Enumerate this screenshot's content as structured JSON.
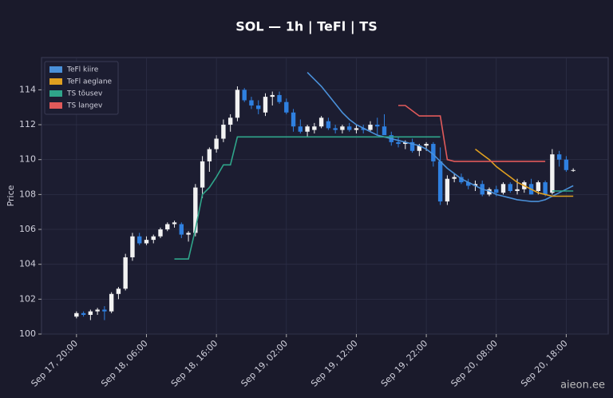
{
  "chart_data": {
    "type": "candlestick",
    "title": "SOL — 1h  |  TeFl  |  TS",
    "y_label": "Price",
    "watermark": "aieon.ee",
    "x": [
      "Sep 17, 20:00",
      "Sep 17, 21:00",
      "Sep 17, 22:00",
      "Sep 17, 23:00",
      "Sep 18, 00:00",
      "Sep 18, 01:00",
      "Sep 18, 02:00",
      "Sep 18, 03:00",
      "Sep 18, 04:00",
      "Sep 18, 05:00",
      "Sep 18, 06:00",
      "Sep 18, 07:00",
      "Sep 18, 08:00",
      "Sep 18, 09:00",
      "Sep 18, 10:00",
      "Sep 18, 11:00",
      "Sep 18, 12:00",
      "Sep 18, 13:00",
      "Sep 18, 14:00",
      "Sep 18, 15:00",
      "Sep 18, 16:00",
      "Sep 18, 17:00",
      "Sep 18, 18:00",
      "Sep 18, 19:00",
      "Sep 18, 20:00",
      "Sep 18, 21:00",
      "Sep 18, 22:00",
      "Sep 18, 23:00",
      "Sep 19, 00:00",
      "Sep 19, 01:00",
      "Sep 19, 02:00",
      "Sep 19, 03:00",
      "Sep 19, 04:00",
      "Sep 19, 05:00",
      "Sep 19, 06:00",
      "Sep 19, 07:00",
      "Sep 19, 08:00",
      "Sep 19, 09:00",
      "Sep 19, 10:00",
      "Sep 19, 11:00",
      "Sep 19, 12:00",
      "Sep 19, 13:00",
      "Sep 19, 14:00",
      "Sep 19, 15:00",
      "Sep 19, 16:00",
      "Sep 19, 17:00",
      "Sep 19, 18:00",
      "Sep 19, 19:00",
      "Sep 19, 20:00",
      "Sep 19, 21:00",
      "Sep 19, 22:00",
      "Sep 19, 23:00",
      "Sep 20, 00:00",
      "Sep 20, 01:00",
      "Sep 20, 02:00",
      "Sep 20, 03:00",
      "Sep 20, 04:00",
      "Sep 20, 05:00",
      "Sep 20, 06:00",
      "Sep 20, 07:00",
      "Sep 20, 08:00",
      "Sep 20, 09:00",
      "Sep 20, 10:00",
      "Sep 20, 11:00",
      "Sep 20, 12:00",
      "Sep 20, 13:00",
      "Sep 20, 14:00",
      "Sep 20, 15:00",
      "Sep 20, 16:00",
      "Sep 20, 17:00",
      "Sep 20, 18:00",
      "Sep 20, 19:00"
    ],
    "open": [
      101.0,
      101.2,
      101.1,
      101.3,
      101.4,
      101.3,
      102.3,
      102.6,
      104.4,
      105.6,
      105.2,
      105.4,
      105.6,
      106.0,
      106.3,
      106.3,
      105.7,
      105.8,
      108.4,
      109.9,
      110.6,
      111.2,
      112.0,
      112.4,
      114.0,
      113.4,
      113.1,
      112.7,
      113.6,
      113.7,
      113.3,
      112.7,
      111.9,
      111.6,
      111.7,
      111.9,
      112.2,
      111.8,
      111.7,
      111.9,
      111.7,
      111.8,
      111.7,
      112.0,
      111.9,
      111.4,
      111.0,
      110.9,
      111.0,
      110.5,
      110.8,
      110.9,
      109.9,
      107.6,
      108.9,
      109.0,
      108.7,
      108.5,
      108.6,
      108.0,
      108.3,
      108.1,
      108.6,
      108.2,
      108.3,
      108.6,
      108.2,
      108.7,
      108.1,
      110.3,
      110.0,
      109.4
    ],
    "high": [
      101.3,
      101.3,
      101.4,
      101.5,
      101.6,
      102.4,
      102.7,
      104.6,
      105.8,
      105.8,
      105.6,
      105.7,
      106.1,
      106.4,
      106.5,
      106.4,
      105.9,
      108.6,
      110.2,
      110.7,
      111.4,
      112.3,
      112.6,
      114.2,
      114.1,
      113.6,
      113.4,
      113.8,
      113.9,
      113.9,
      113.5,
      112.9,
      112.3,
      112.0,
      112.1,
      112.5,
      112.4,
      112.0,
      112.0,
      112.1,
      112.0,
      112.0,
      112.2,
      112.4,
      112.6,
      111.6,
      111.3,
      111.1,
      111.2,
      110.9,
      111.0,
      111.0,
      110.7,
      109.1,
      109.2,
      109.2,
      108.9,
      108.8,
      108.8,
      108.4,
      108.5,
      108.7,
      108.7,
      108.9,
      108.8,
      108.9,
      108.8,
      108.8,
      110.6,
      110.5,
      110.2,
      109.5
    ],
    "low": [
      100.9,
      101.0,
      100.8,
      101.1,
      100.8,
      101.2,
      102.0,
      102.5,
      104.2,
      105.1,
      105.1,
      105.2,
      105.5,
      105.9,
      106.1,
      105.5,
      105.3,
      105.6,
      107.8,
      109.3,
      110.4,
      111.0,
      111.6,
      112.2,
      113.3,
      112.9,
      112.6,
      112.5,
      113.1,
      113.2,
      112.6,
      111.6,
      111.5,
      111.3,
      111.5,
      111.8,
      111.7,
      111.5,
      111.5,
      111.6,
      111.5,
      111.5,
      111.6,
      111.4,
      111.5,
      110.8,
      110.7,
      110.6,
      110.4,
      110.2,
      110.5,
      109.6,
      107.4,
      107.4,
      108.7,
      108.6,
      108.3,
      108.2,
      107.9,
      107.9,
      107.9,
      108.0,
      108.1,
      108.0,
      108.1,
      108.0,
      108.0,
      107.9,
      108.0,
      109.6,
      109.3,
      109.3
    ],
    "close": [
      101.2,
      101.1,
      101.3,
      101.4,
      101.3,
      102.3,
      102.6,
      104.4,
      105.6,
      105.2,
      105.4,
      105.6,
      106.0,
      106.3,
      106.4,
      105.7,
      105.8,
      108.4,
      109.9,
      110.6,
      111.2,
      112.0,
      112.4,
      114.0,
      113.4,
      113.1,
      112.9,
      113.6,
      113.7,
      113.3,
      112.7,
      111.9,
      111.6,
      111.9,
      111.9,
      112.4,
      111.8,
      111.7,
      111.9,
      111.7,
      111.8,
      111.7,
      112.0,
      111.9,
      111.4,
      111.0,
      110.9,
      111.0,
      110.5,
      110.8,
      110.9,
      109.9,
      107.6,
      108.9,
      109.0,
      108.7,
      108.5,
      108.6,
      108.0,
      108.3,
      108.1,
      108.6,
      108.2,
      108.3,
      108.7,
      108.0,
      108.7,
      108.0,
      110.3,
      110.0,
      109.4,
      109.4
    ],
    "up_color": "#f2f2f2",
    "down_color": "#2f80e0",
    "series": [
      {
        "name": "TeFl kiire",
        "color": "#4a90d9",
        "values": [
          null,
          null,
          null,
          null,
          null,
          null,
          null,
          null,
          null,
          null,
          null,
          null,
          null,
          null,
          null,
          null,
          null,
          null,
          null,
          null,
          null,
          null,
          null,
          null,
          null,
          null,
          null,
          null,
          null,
          null,
          null,
          null,
          null,
          115.0,
          114.6,
          114.2,
          113.7,
          113.2,
          112.7,
          112.3,
          112.0,
          111.8,
          111.6,
          111.4,
          111.3,
          111.2,
          111.1,
          111.0,
          110.9,
          110.8,
          110.6,
          110.3,
          109.9,
          109.5,
          109.2,
          108.9,
          108.7,
          108.5,
          108.3,
          108.2,
          108.0,
          107.9,
          107.8,
          107.7,
          107.65,
          107.6,
          107.6,
          107.7,
          107.9,
          108.1,
          108.3,
          108.5
        ]
      },
      {
        "name": "TeFl aeglane",
        "color": "#e0a020",
        "values": [
          null,
          null,
          null,
          null,
          null,
          null,
          null,
          null,
          null,
          null,
          null,
          null,
          null,
          null,
          null,
          null,
          null,
          null,
          null,
          null,
          null,
          null,
          null,
          null,
          null,
          null,
          null,
          null,
          null,
          null,
          null,
          null,
          null,
          null,
          null,
          null,
          null,
          null,
          null,
          null,
          null,
          null,
          null,
          null,
          null,
          null,
          null,
          null,
          null,
          null,
          null,
          null,
          null,
          null,
          null,
          null,
          null,
          110.6,
          110.3,
          110.0,
          109.6,
          109.3,
          109.0,
          108.7,
          108.5,
          108.3,
          108.1,
          108.0,
          107.9,
          107.9,
          107.9,
          107.9
        ]
      },
      {
        "name": "TS tõusev",
        "color": "#2fa58a",
        "values": [
          null,
          null,
          null,
          null,
          null,
          null,
          null,
          null,
          null,
          null,
          null,
          null,
          null,
          null,
          104.3,
          104.3,
          104.3,
          106.0,
          108.0,
          108.4,
          109.0,
          109.7,
          109.7,
          111.3,
          111.3,
          111.3,
          111.3,
          111.3,
          111.3,
          111.3,
          111.3,
          111.3,
          111.3,
          111.3,
          111.3,
          111.3,
          111.3,
          111.3,
          111.3,
          111.3,
          111.3,
          111.3,
          111.3,
          111.3,
          111.3,
          111.3,
          111.3,
          111.3,
          111.3,
          111.3,
          111.3,
          111.3,
          111.3,
          null,
          null,
          null,
          null,
          null,
          null,
          null,
          null,
          null,
          null,
          null,
          null,
          null,
          null,
          null,
          108.2,
          108.2,
          108.2,
          108.2
        ]
      },
      {
        "name": "TS langev",
        "color": "#e05a5a",
        "values": [
          null,
          null,
          null,
          null,
          null,
          null,
          null,
          null,
          null,
          null,
          null,
          null,
          null,
          null,
          null,
          null,
          null,
          null,
          null,
          null,
          null,
          null,
          null,
          null,
          null,
          null,
          null,
          null,
          null,
          null,
          null,
          null,
          null,
          null,
          null,
          null,
          null,
          null,
          null,
          null,
          null,
          null,
          null,
          null,
          null,
          null,
          113.1,
          113.1,
          112.8,
          112.5,
          112.5,
          112.5,
          112.5,
          110.0,
          109.9,
          109.9,
          109.9,
          109.9,
          109.9,
          109.9,
          109.9,
          109.9,
          109.9,
          109.9,
          109.9,
          109.9,
          109.9,
          109.9,
          null,
          null,
          null,
          null
        ]
      }
    ],
    "xlim": [
      "Sep 17, 15:00",
      "Sep 21, 00:00"
    ],
    "xticks": [
      "Sep 17, 20:00",
      "Sep 18, 06:00",
      "Sep 18, 16:00",
      "Sep 19, 02:00",
      "Sep 19, 12:00",
      "Sep 19, 22:00",
      "Sep 20, 08:00",
      "Sep 20, 18:00"
    ],
    "ylim": [
      100,
      115.85
    ],
    "yticks": [
      100,
      102,
      104,
      106,
      108,
      110,
      112,
      114
    ],
    "grid": true,
    "legend": "upper left"
  }
}
